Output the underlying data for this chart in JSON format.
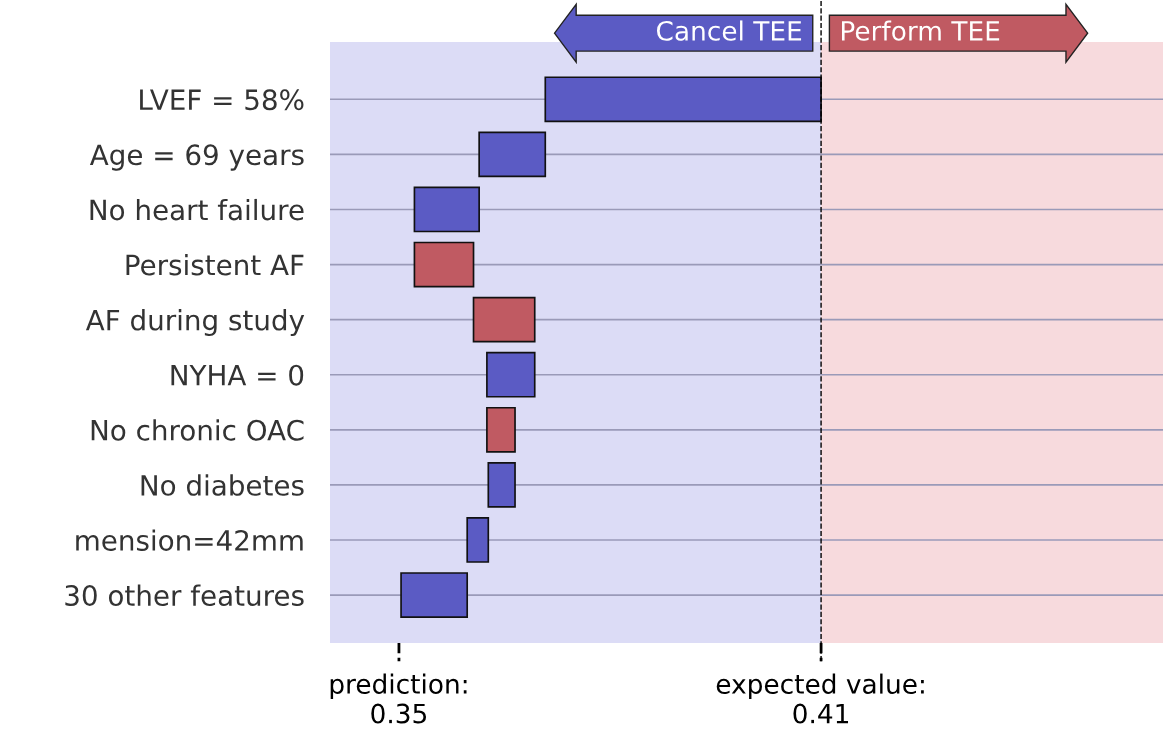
{
  "chart_data": {
    "type": "bar",
    "orientation": "horizontal",
    "categories": [
      "LVEF = 58%",
      "Age = 69 years",
      "No heart failure",
      "Persistent AF",
      "AF during study",
      "NYHA = 0",
      "No chronic OAC",
      "No diabetes",
      "mension=42mm",
      "30 other features"
    ],
    "base": [
      0.41,
      0.3708,
      0.3614,
      0.3522,
      0.3606,
      0.3693,
      0.3625,
      0.3665,
      0.3627,
      0.3597
    ],
    "values": [
      -0.0392,
      -0.0094,
      -0.0092,
      0.0084,
      0.0087,
      -0.0068,
      0.004,
      -0.0038,
      -0.003,
      -0.0094
    ],
    "colors": [
      "#5b5bc4",
      "#5b5bc4",
      "#5b5bc4",
      "#c05a62",
      "#c05a62",
      "#5b5bc4",
      "#c05a62",
      "#5b5bc4",
      "#5b5bc4",
      "#5b5bc4"
    ],
    "xlim": [
      0.3402,
      0.4586
    ],
    "xticks": [
      {
        "value": 0.35,
        "label": "prediction:\n0.35"
      },
      {
        "value": 0.41,
        "label": "expected value:\n0.41"
      }
    ],
    "ref_lines": [
      {
        "axis": "x",
        "value": 0.41,
        "line_style": "dashed",
        "color": "#000000"
      }
    ],
    "bands": [
      {
        "axis": "x",
        "from": 0.3402,
        "to": 0.41,
        "label": "Cancel TEE",
        "color": "#dcdcf6"
      },
      {
        "axis": "x",
        "from": 0.41,
        "to": 0.4586,
        "label": "Perform TEE",
        "color": "#f7dadd"
      }
    ],
    "grid": "y"
  }
}
